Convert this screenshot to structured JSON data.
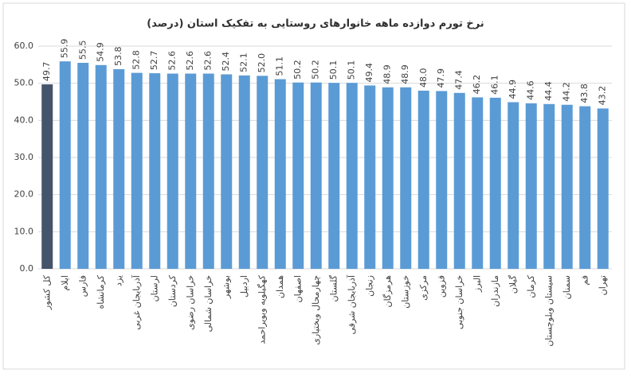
{
  "chart_data": {
    "type": "bar",
    "title": "نرخ تورم دوازده ماهه خانوارهای روستایی به تفکیک استان (درصد)",
    "categories": [
      "کل کشور",
      "ایلام",
      "فارس",
      "کرمانشاه",
      "یزد",
      "آذربایجان غربی",
      "لرستان",
      "کردستان",
      "خراسان رضوی",
      "خراسان شمالی",
      "بوشهر",
      "اردبیل",
      "کهگیلویه وبویراحمد",
      "همدان",
      "اصفهان",
      "چهارمحال وبختیاری",
      "گلستان",
      "آذربایجان شرقی",
      "زنجان",
      "هرمزگان",
      "خوزستان",
      "مرکزی",
      "قزوین",
      "خراسان جنوبی",
      "البرز",
      "مازندران",
      "گیلان",
      "کرمان",
      "سیستان وبلوچستان",
      "سمنان",
      "قم",
      "تهران"
    ],
    "values": [
      49.7,
      55.9,
      55.5,
      54.9,
      53.8,
      52.8,
      52.7,
      52.6,
      52.6,
      52.6,
      52.4,
      52.1,
      52.0,
      51.1,
      50.2,
      50.2,
      50.1,
      50.1,
      49.4,
      48.9,
      48.9,
      48.0,
      47.9,
      47.4,
      46.2,
      46.1,
      44.9,
      44.6,
      44.4,
      44.2,
      43.8,
      43.2
    ],
    "value_labels": [
      "49.7",
      "55.9",
      "55.5",
      "54.9",
      "53.8",
      "52.8",
      "52.7",
      "52.6",
      "52.6",
      "52.6",
      "52.4",
      "52.1",
      "52.0",
      "51.1",
      "50.2",
      "50.2",
      "50.1",
      "50.1",
      "49.4",
      "48.9",
      "48.9",
      "48.0",
      "47.9",
      "47.4",
      "46.2",
      "46.1",
      "44.9",
      "44.6",
      "44.4",
      "44.2",
      "43.8",
      "43.2"
    ],
    "colors": [
      "#44546a",
      "#5b9bd5",
      "#5b9bd5",
      "#5b9bd5",
      "#5b9bd5",
      "#5b9bd5",
      "#5b9bd5",
      "#5b9bd5",
      "#5b9bd5",
      "#5b9bd5",
      "#5b9bd5",
      "#5b9bd5",
      "#5b9bd5",
      "#5b9bd5",
      "#5b9bd5",
      "#5b9bd5",
      "#5b9bd5",
      "#5b9bd5",
      "#5b9bd5",
      "#5b9bd5",
      "#5b9bd5",
      "#5b9bd5",
      "#5b9bd5",
      "#5b9bd5",
      "#5b9bd5",
      "#5b9bd5",
      "#5b9bd5",
      "#5b9bd5",
      "#5b9bd5",
      "#5b9bd5",
      "#5b9bd5",
      "#5b9bd5"
    ],
    "ylim": [
      0,
      60
    ],
    "yticks": [
      {
        "value": 0,
        "label": "0.0"
      },
      {
        "value": 10,
        "label": "10.0"
      },
      {
        "value": 20,
        "label": "20.0"
      },
      {
        "value": 30,
        "label": "30.0"
      },
      {
        "value": 40,
        "label": "40.0"
      },
      {
        "value": 50,
        "label": "50.0"
      },
      {
        "value": 60,
        "label": "60.0"
      }
    ],
    "grid": true
  }
}
